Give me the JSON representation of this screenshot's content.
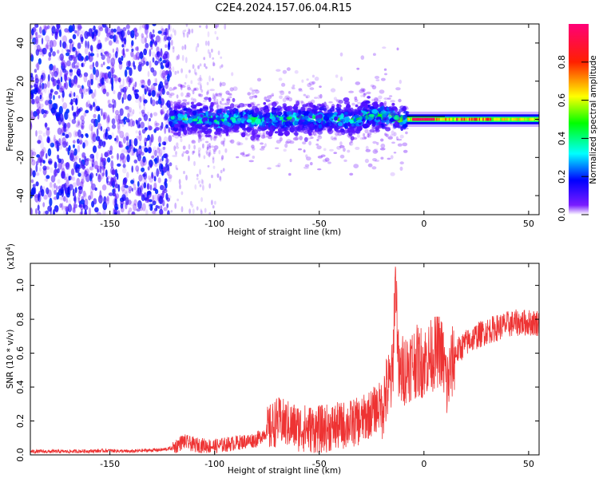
{
  "title": "C2E4.2024.157.06.04.R15",
  "colors": {
    "snr_line": "#ee3333",
    "ridge": "#e01030"
  },
  "chart_data": [
    {
      "type": "heatmap",
      "title": "C2E4.2024.157.06.04.R15",
      "xlabel": "Height of straight line (km)",
      "ylabel": "Frequency (Hz)",
      "xlim": [
        -188,
        55
      ],
      "ylim": [
        -50,
        50
      ],
      "xticks": [
        -150,
        -100,
        -50,
        0,
        50
      ],
      "yticks": [
        -40,
        -20,
        0,
        20,
        40
      ],
      "xtick_labels": [
        "-150",
        "-100",
        "-50",
        "0",
        "50"
      ],
      "ytick_labels": [
        "-40",
        "-20",
        "0",
        "20",
        "40"
      ],
      "colorbar": {
        "label": "Normalized spectral amplitude",
        "range": [
          0,
          1
        ],
        "ticks": [
          0.0,
          0.2,
          0.4,
          0.6,
          0.8
        ],
        "tick_labels": [
          "0.0",
          "0.2",
          "0.4",
          "0.6",
          "0.8"
        ],
        "colormap": [
          "#ffffff",
          "#5a00ff",
          "#0000ff",
          "#00ffff",
          "#00ff00",
          "#ffff00",
          "#ff0000",
          "#ff0077"
        ]
      },
      "regions": [
        {
          "x_range": [
            -188,
            -121
          ],
          "freq_range": [
            -50,
            50
          ],
          "density": "scattered speckle",
          "amplitude_max": 0.18
        },
        {
          "x_range": [
            -121,
            -95
          ],
          "freq_range": [
            -50,
            50
          ],
          "density": "sparse faint speckle",
          "amplitude_max": 0.08
        },
        {
          "x_range": [
            -121,
            -8
          ],
          "freq_center": 0,
          "freq_halfwidth": 10,
          "density": "dense band",
          "amplitude_max": 0.5
        },
        {
          "x_range": [
            -8,
            55
          ],
          "freq_center": 0,
          "freq_halfwidth": 3,
          "density": "narrow ridge",
          "amplitude_max": 1.0
        }
      ]
    },
    {
      "type": "line",
      "xlabel": "Height of straight line (km)",
      "ylabel": "SNR (10 * v/v)",
      "y_multiplier": "(x10",
      "y_multiplier_exp": "4",
      "y_multiplier_close": ")",
      "xlim": [
        -188,
        55
      ],
      "ylim": [
        0,
        1.13
      ],
      "xticks": [
        -150,
        -100,
        -50,
        0,
        50
      ],
      "yticks": [
        0.0,
        0.2,
        0.4,
        0.6,
        0.8,
        1.0
      ],
      "xtick_labels": [
        "-150",
        "-100",
        "-50",
        "0",
        "50"
      ],
      "ytick_labels": [
        "0.0",
        "0.2",
        "0.4",
        "0.6",
        "0.8",
        "1.0"
      ],
      "series": [
        {
          "x": [
            -188,
            -170,
            -150,
            -140,
            -135,
            -125,
            -120,
            -115,
            -110,
            -100,
            -90,
            -80,
            -75,
            -70,
            -60,
            -50,
            -40,
            -30,
            -25,
            -20,
            -17,
            -15,
            -13.6,
            -12,
            -10,
            -5,
            0,
            5,
            8,
            10,
            11,
            13,
            15,
            20,
            25,
            30,
            35,
            40,
            45,
            50,
            55
          ],
          "y": [
            0.02,
            0.02,
            0.025,
            0.02,
            0.025,
            0.03,
            0.04,
            0.08,
            0.06,
            0.05,
            0.07,
            0.09,
            0.14,
            0.2,
            0.16,
            0.15,
            0.17,
            0.2,
            0.25,
            0.3,
            0.4,
            0.45,
            1.13,
            0.45,
            0.5,
            0.55,
            0.55,
            0.6,
            0.62,
            0.5,
            0.4,
            0.52,
            0.6,
            0.66,
            0.7,
            0.73,
            0.75,
            0.77,
            0.78,
            0.78,
            0.78
          ]
        }
      ]
    }
  ]
}
